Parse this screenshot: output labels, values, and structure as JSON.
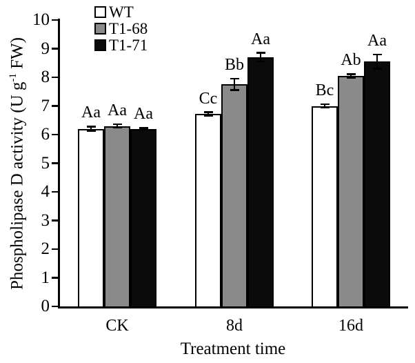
{
  "figure": {
    "background": "#ffffff",
    "text_color": "#000000",
    "axis_color": "#000000"
  },
  "chart_data": {
    "type": "bar",
    "title": "",
    "categories": [
      "CK",
      "8d",
      "16d"
    ],
    "series": [
      {
        "name": "WT",
        "fill": "#ffffff",
        "values": [
          6.2,
          6.72,
          7.0
        ],
        "errors": [
          0.08,
          0.06,
          0.06
        ],
        "sig_labels": [
          "Aa",
          "Cc",
          "Bc"
        ]
      },
      {
        "name": "T1-68",
        "fill": "#8a8a8a",
        "values": [
          6.3,
          7.75,
          8.05
        ],
        "errors": [
          0.06,
          0.2,
          0.06
        ],
        "sig_labels": [
          "Aa",
          "Bb",
          "Ab"
        ]
      },
      {
        "name": "T1-71",
        "fill": "#0b0b0b",
        "values": [
          6.2,
          8.7,
          8.55
        ],
        "errors": [
          0.03,
          0.15,
          0.25
        ],
        "sig_labels": [
          "Aa",
          "Aa",
          "Aa"
        ]
      }
    ],
    "xlabel": "Treatment time",
    "ylabel": {
      "pre": "Phospholipase D activity (U g",
      "sup": "-1",
      "post": " FW)"
    },
    "ylim": [
      0,
      10
    ],
    "yticks": [
      0,
      1,
      2,
      3,
      4,
      5,
      6,
      7,
      8,
      9,
      10
    ],
    "grid": false,
    "legend": {
      "position": "top-inside-left",
      "entries": [
        "WT",
        "T1-68",
        "T1-71"
      ]
    },
    "bar_edge_color": "#000000",
    "error_bar_color": "#000000"
  }
}
